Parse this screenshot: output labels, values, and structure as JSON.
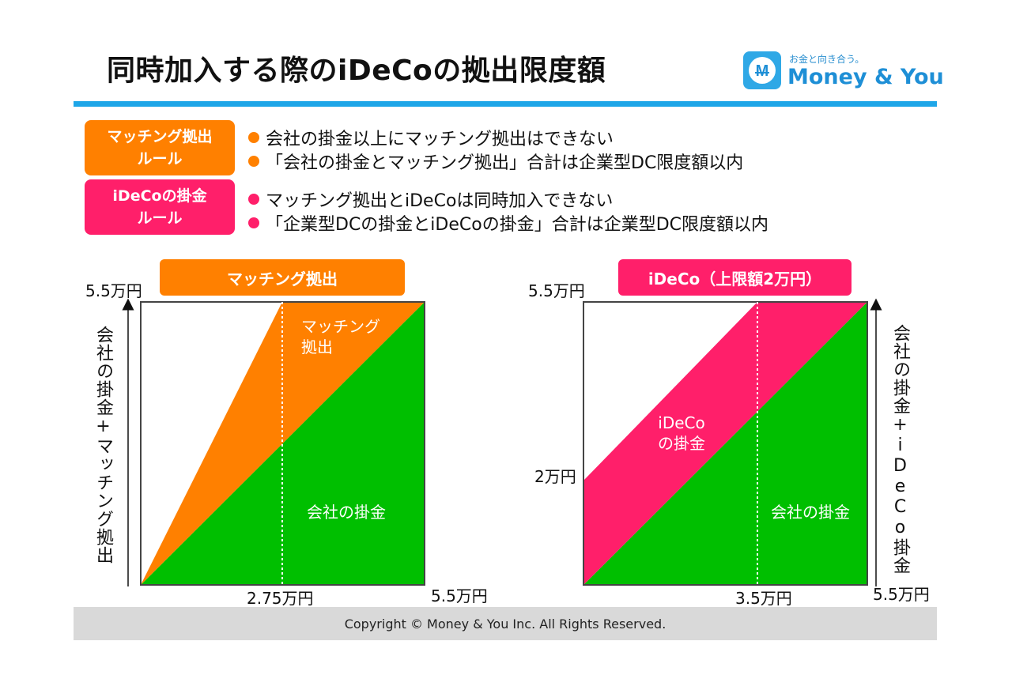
{
  "title": "同時加入する際のiDeCoの拠出限度額",
  "logo": {
    "tagline": "お金と向き合う。",
    "name": "Money & You",
    "icon": "yen-m-logo-icon",
    "color": "#1ea6e8"
  },
  "rules": [
    {
      "badge_lines": [
        "マッチング拠出",
        "ルール"
      ],
      "color": "#ff8000",
      "items": [
        "会社の掛金以上にマッチング拠出はできない",
        "「会社の掛金とマッチング拠出」合計は企業型DC限度額以内"
      ]
    },
    {
      "badge_lines": [
        "iDeCoの掛金",
        "ルール"
      ],
      "color": "#ff1f6a",
      "items": [
        "マッチング拠出とiDeCoは同時加入できない",
        "「企業型DCの掛金とiDeCoの掛金」合計は企業型DC限度額以内"
      ]
    }
  ],
  "chart_left": {
    "header": "マッチング拠出",
    "y_axis_label": "会社の掛金+マッチング拠出",
    "y_top_label": "5.5万円",
    "x_mid_label": "2.75万円",
    "x_end_label": "5.5万円",
    "regions": {
      "upper": [
        "マッチング",
        "拠出"
      ],
      "lower": "会社の掛金"
    }
  },
  "chart_right": {
    "header": "iDeCo（上限額2万円）",
    "y_axis_label": "会社の掛金+iDeCo掛金",
    "y_top_label": "5.5万円",
    "y_mid_label": "2万円",
    "x_mid_label": "3.5万円",
    "x_end_label": "5.5万円",
    "regions": {
      "upper": [
        "iDeCo",
        "の掛金"
      ],
      "lower": "会社の掛金"
    }
  },
  "colors": {
    "orange": "#ff8000",
    "pink": "#ff1f6a",
    "green": "#00bf00",
    "blue": "#1ea6e8"
  },
  "footer": "Copyright © Money & You Inc. All Rights Reserved."
}
